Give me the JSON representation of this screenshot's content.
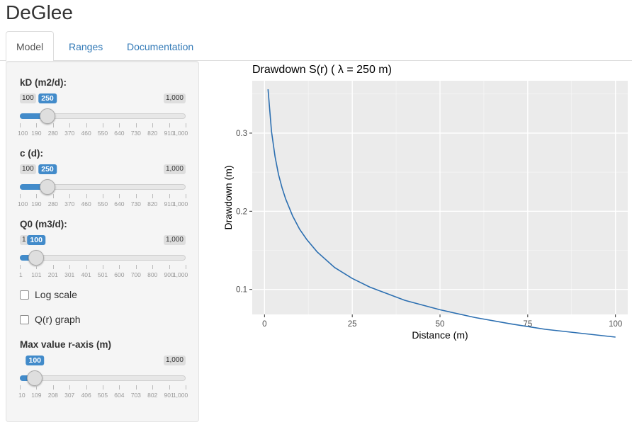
{
  "app": {
    "title": "DeGlee"
  },
  "tabs": [
    {
      "label": "Model",
      "active": true
    },
    {
      "label": "Ranges",
      "active": false
    },
    {
      "label": "Documentation",
      "active": false
    }
  ],
  "sidebar": {
    "sliders": [
      {
        "label": "kD (m2/d):",
        "min_label": "100",
        "max_label": "1,000",
        "value": 250,
        "value_label": "250",
        "min": 100,
        "max": 1000,
        "ticks": [
          "100",
          "190",
          "280",
          "370",
          "460",
          "550",
          "640",
          "730",
          "820",
          "910",
          "1,000"
        ]
      },
      {
        "label": "c (d):",
        "min_label": "100",
        "max_label": "1,000",
        "value": 250,
        "value_label": "250",
        "min": 100,
        "max": 1000,
        "ticks": [
          "100",
          "190",
          "280",
          "370",
          "460",
          "550",
          "640",
          "730",
          "820",
          "910",
          "1,000"
        ]
      },
      {
        "label": "Q0 (m3/d):",
        "min_label": "1",
        "max_label": "1,000",
        "value": 100,
        "value_label": "100",
        "min": 1,
        "max": 1000,
        "ticks": [
          "1",
          "101",
          "201",
          "301",
          "401",
          "501",
          "600",
          "700",
          "800",
          "900",
          "1,000"
        ]
      },
      {
        "label": "Max value r-axis (m)",
        "min_label": "",
        "max_label": "1,000",
        "value": 100,
        "value_label": "100",
        "min": 10,
        "max": 1000,
        "ticks": [
          "10",
          "109",
          "208",
          "307",
          "406",
          "505",
          "604",
          "703",
          "802",
          "901",
          "1,000"
        ]
      }
    ],
    "checkboxes": [
      {
        "label": "Log scale",
        "checked": false
      },
      {
        "label": "Q(r) graph",
        "checked": false
      }
    ]
  },
  "chart_data": {
    "type": "line",
    "title": "Drawdown S(r) ( λ = 250 m)",
    "xlabel": "Distance (m)",
    "ylabel": "Drawdown (m)",
    "xlim": [
      1,
      100
    ],
    "ylim": [
      0.07,
      0.36
    ],
    "xticks": [
      0,
      25,
      50,
      75,
      100
    ],
    "xtick_labels": [
      "0",
      "25",
      "50",
      "75",
      "100"
    ],
    "yticks": [
      0.1,
      0.2,
      0.3
    ],
    "ytick_labels": [
      "0.1",
      "0.2",
      "0.3"
    ],
    "grid": true,
    "background": "#ebebeb",
    "line_color": "#2c6fb1",
    "series": [
      {
        "x": [
          1,
          2,
          3,
          4,
          5,
          6,
          8,
          10,
          12,
          15,
          20,
          25,
          30,
          40,
          50,
          60,
          70,
          80,
          90,
          100
        ],
        "y": [
          0.356,
          0.302,
          0.27,
          0.247,
          0.23,
          0.216,
          0.194,
          0.177,
          0.164,
          0.148,
          0.128,
          0.114,
          0.103,
          0.086,
          0.074,
          0.064,
          0.056,
          0.049,
          0.044,
          0.039
        ]
      }
    ]
  }
}
